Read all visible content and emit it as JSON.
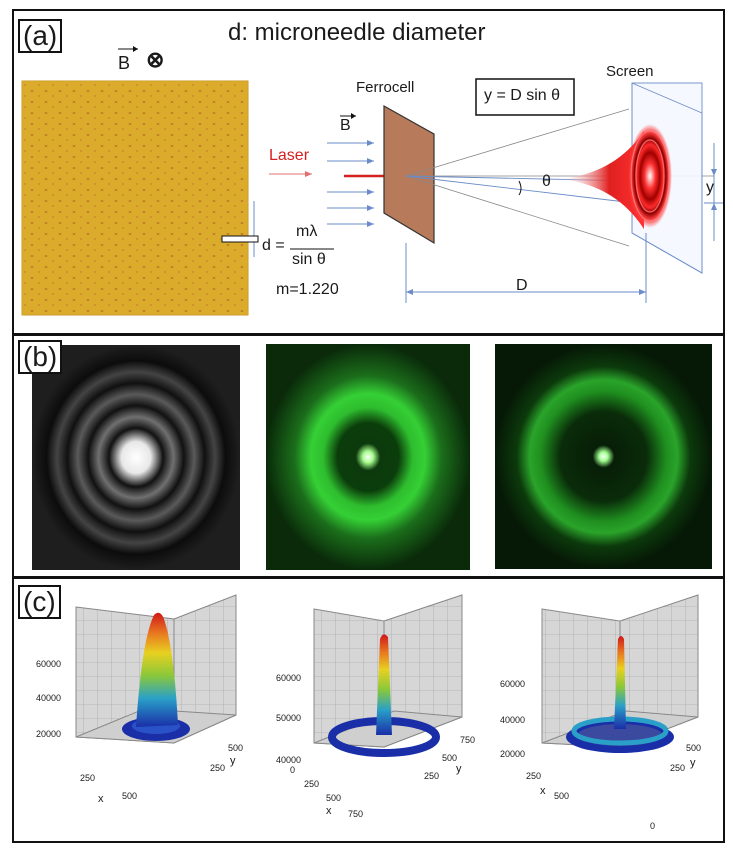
{
  "panel_a": {
    "label": "(a)",
    "title": "d: microneedle diameter",
    "field_label": "B",
    "field_into_symbol": "⊗",
    "ferrocell_label": "Ferrocell",
    "ferrocell_field": "B",
    "laser_label": "Laser",
    "screen_label": "Screen",
    "equation_y": "y = D sin θ",
    "equation_d_lhs": "d =",
    "equation_d_num": "mλ",
    "equation_d_den": "sin θ",
    "m_value": "m=1.220",
    "theta_label": "θ",
    "y_label": "y",
    "distance_label": "D",
    "colors": {
      "laser": "#d42020",
      "ferrocell": "#b77a5a",
      "photo": "#d8a825",
      "guide": "#6a8cc8"
    }
  },
  "panel_b": {
    "label": "(b)",
    "images": [
      "simulated-airy-pattern",
      "measured-diffraction-pattern-1",
      "measured-diffraction-pattern-2"
    ],
    "colors": {
      "green": "#20c020"
    }
  },
  "panel_c": {
    "label": "(c)",
    "plot1": {
      "z_ticks": [
        "60000",
        "40000",
        "20000"
      ],
      "x_ticks": [
        "250",
        "500"
      ],
      "y_ticks": [
        "250",
        "500"
      ],
      "x_label": "x",
      "y_label": "y"
    },
    "plot2": {
      "z_ticks": [
        "60000",
        "50000",
        "40000"
      ],
      "x_ticks": [
        "0",
        "250",
        "500",
        "750"
      ],
      "y_ticks": [
        "250",
        "500",
        "750"
      ],
      "x_label": "x",
      "y_label": "y"
    },
    "plot3": {
      "z_ticks": [
        "60000",
        "40000",
        "20000"
      ],
      "x_ticks": [
        "0",
        "250",
        "500"
      ],
      "y_ticks": [
        "250",
        "500"
      ],
      "x_label": "x",
      "y_label": "y"
    }
  }
}
